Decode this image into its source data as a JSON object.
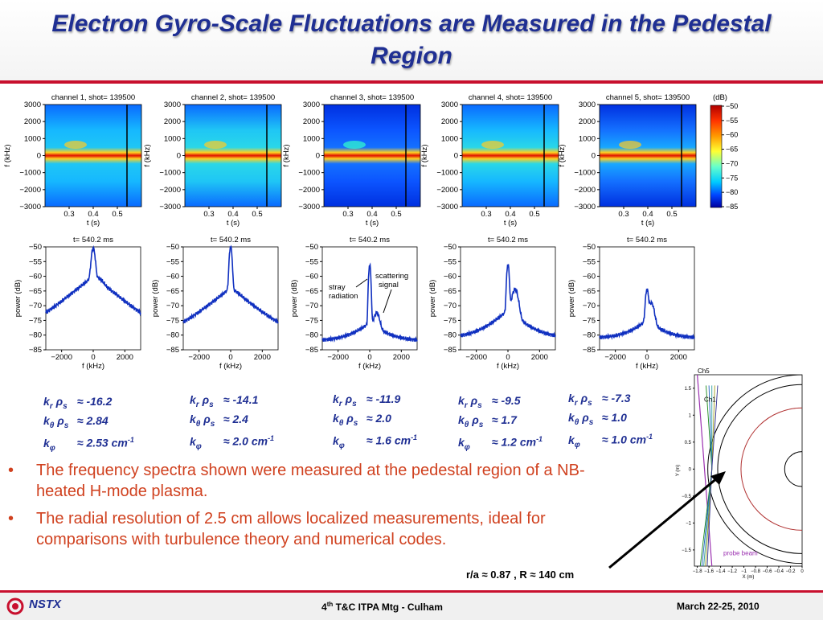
{
  "title": "Electron Gyro-Scale Fluctuations are Measured in the Pedestal Region",
  "colorbar": {
    "label": "(dB)",
    "ticks": [
      "−50",
      "−55",
      "−60",
      "−65",
      "−70",
      "−75",
      "−80",
      "−85"
    ],
    "colors": [
      "#b00000",
      "#ff3300",
      "#ff9900",
      "#ffff33",
      "#66ffcc",
      "#00ccff",
      "#0044ff",
      "#0000a0"
    ]
  },
  "chart_data": [
    {
      "type": "heatmap",
      "title": "channel 1, shot= 139500",
      "xlabel": "t (s)",
      "ylabel": "f (kHz)",
      "xticks": [
        "0.3",
        "0.4",
        "0.5"
      ],
      "yticks": [
        "3000",
        "2000",
        "1000",
        "0",
        "−1000",
        "−2000",
        "−3000"
      ],
      "ylim": [
        -3000,
        3000
      ]
    },
    {
      "type": "heatmap",
      "title": "channel 2, shot= 139500",
      "xlabel": "t (s)",
      "ylabel": "f (kHz)",
      "xticks": [
        "0.3",
        "0.4",
        "0.5"
      ],
      "yticks": [
        "3000",
        "2000",
        "1000",
        "0",
        "−1000",
        "−2000",
        "−3000"
      ],
      "ylim": [
        -3000,
        3000
      ]
    },
    {
      "type": "heatmap",
      "title": "channel 3, shot= 139500",
      "xlabel": "t (s)",
      "ylabel": "f (kHz)",
      "xticks": [
        "0.3",
        "0.4",
        "0.5"
      ],
      "yticks": [
        "3000",
        "2000",
        "1000",
        "0",
        "−1000",
        "−2000",
        "−3000"
      ],
      "ylim": [
        -3000,
        3000
      ]
    },
    {
      "type": "heatmap",
      "title": "channel 4, shot= 139500",
      "xlabel": "t (s)",
      "ylabel": "f (kHz)",
      "xticks": [
        "0.3",
        "0.4",
        "0.5"
      ],
      "yticks": [
        "3000",
        "2000",
        "1000",
        "0",
        "−1000",
        "−2000",
        "−3000"
      ],
      "ylim": [
        -3000,
        3000
      ]
    },
    {
      "type": "heatmap",
      "title": "channel 5, shot= 139500",
      "xlabel": "t (s)",
      "ylabel": "f (kHz)",
      "xticks": [
        "0.3",
        "0.4",
        "0.5"
      ],
      "yticks": [
        "3000",
        "2000",
        "1000",
        "0",
        "−1000",
        "−2000",
        "−3000"
      ],
      "ylim": [
        -3000,
        3000
      ]
    },
    {
      "type": "line",
      "title": "t= 540.2 ms",
      "xlabel": "f (kHz)",
      "ylabel": "power (dB)",
      "xticks": [
        "−2000",
        "0",
        "2000"
      ],
      "yticks": [
        "−50",
        "−55",
        "−60",
        "−65",
        "−70",
        "−75",
        "−80",
        "−85"
      ],
      "xlim": [
        -3000,
        3000
      ],
      "ylim": [
        -85,
        -50
      ],
      "baseline": -81,
      "peaks": [
        {
          "x": 0,
          "y": -51,
          "w": 130
        },
        {
          "x": 450,
          "y": -68,
          "w": 250
        }
      ],
      "wing": [
        -60,
        6000
      ]
    },
    {
      "type": "line",
      "title": "t= 540.2 ms",
      "xlabel": "f (kHz)",
      "ylabel": "power (dB)",
      "xticks": [
        "−2000",
        "0",
        "2000"
      ],
      "yticks": [
        "−50",
        "−55",
        "−60",
        "−65",
        "−70",
        "−75",
        "−80",
        "−85"
      ],
      "xlim": [
        -3000,
        3000
      ],
      "ylim": [
        -85,
        -50
      ],
      "baseline": -81,
      "peaks": [
        {
          "x": 0,
          "y": -50,
          "w": 90
        },
        {
          "x": 450,
          "y": -78,
          "w": 250
        }
      ],
      "wing": [
        -64,
        6000
      ]
    },
    {
      "type": "line",
      "title": "t= 540.2 ms",
      "xlabel": "f (kHz)",
      "ylabel": "power (dB)",
      "xticks": [
        "−2000",
        "0",
        "2000"
      ],
      "yticks": [
        "−50",
        "−55",
        "−60",
        "−65",
        "−70",
        "−75",
        "−80",
        "−85"
      ],
      "xlim": [
        -3000,
        3000
      ],
      "ylim": [
        -85,
        -50
      ],
      "baseline": -82,
      "peaks": [
        {
          "x": 0,
          "y": -56,
          "w": 70
        },
        {
          "x": 450,
          "y": -74,
          "w": 200
        }
      ],
      "wing": [
        -77,
        5000
      ],
      "annotations": [
        "stray radiation",
        "scattering signal"
      ]
    },
    {
      "type": "line",
      "title": "t= 540.2 ms",
      "xlabel": "f (kHz)",
      "ylabel": "power (dB)",
      "xticks": [
        "−2000",
        "0",
        "2000"
      ],
      "yticks": [
        "−50",
        "−55",
        "−60",
        "−65",
        "−70",
        "−75",
        "−80",
        "−85"
      ],
      "xlim": [
        -3000,
        3000
      ],
      "ylim": [
        -85,
        -50
      ],
      "baseline": -81,
      "peaks": [
        {
          "x": 0,
          "y": -56,
          "w": 80
        },
        {
          "x": 450,
          "y": -65,
          "w": 220
        }
      ],
      "wing": [
        -72,
        5000
      ]
    },
    {
      "type": "line",
      "title": "t= 540.2 ms",
      "xlabel": "f (kHz)",
      "ylabel": "power (dB)",
      "xticks": [
        "−2000",
        "0",
        "2000"
      ],
      "yticks": [
        "−50",
        "−55",
        "−60",
        "−65",
        "−70",
        "−75",
        "−80",
        "−85"
      ],
      "xlim": [
        -3000,
        3000
      ],
      "ylim": [
        -85,
        -50
      ],
      "baseline": -81,
      "peaks": [
        {
          "x": 0,
          "y": -65,
          "w": 100
        },
        {
          "x": 280,
          "y": -70,
          "w": 200
        }
      ],
      "wing": [
        -76,
        4500
      ]
    },
    {
      "type": "line",
      "title": "",
      "xlabel": "X (m)",
      "ylabel": "Y (m)",
      "xticks": [
        "−1.8",
        "−1.6",
        "−1.4",
        "−1.2",
        "−1",
        "−0.8",
        "−0.6",
        "−0.4",
        "−0.2",
        "0"
      ],
      "yticks": [
        "1.5",
        "1",
        "0.5",
        "0",
        "−0.5",
        "−1",
        "−1.5"
      ],
      "xlim": [
        -1.85,
        0
      ],
      "ylim": [
        -1.8,
        1.75
      ],
      "annotations": [
        "Ch5",
        "Ch1",
        "probe beam"
      ]
    }
  ],
  "k_values": [
    {
      "kr": "≈ -16.2",
      "kt": "≈ 2.84",
      "kp": "≈ 2.53 cm",
      "exp": "-1"
    },
    {
      "kr": "≈ -14.1",
      "kt": "≈ 2.4",
      "kp": "≈ 2.0 cm",
      "exp": "-1"
    },
    {
      "kr": "≈ -11.9",
      "kt": "≈ 2.0",
      "kp": "≈ 1.6 cm",
      "exp": "-1"
    },
    {
      "kr": "≈ -9.5",
      "kt": "≈ 1.7",
      "kp": "≈ 1.2 cm",
      "exp": "-1"
    },
    {
      "kr": "≈ -7.3",
      "kt": "≈ 1.0",
      "kp": "≈ 1.0 cm",
      "exp": "-1"
    }
  ],
  "k_labels": {
    "k": "k",
    "r": "r",
    "theta": "θ",
    "phi": "φ",
    "rho": "ρ",
    "s": "s"
  },
  "bullets": [
    "The frequency spectra shown were measured at the pedestal region of a NB-heated H-mode plasma.",
    "The radial resolution of 2.5 cm allows localized measurements, ideal for comparisons with turbulence theory and numerical codes."
  ],
  "bullet_symbol": "•",
  "location_caption": "r/a ≈ 0.87 , R ≈ 140 cm",
  "footer": {
    "logo": "NSTX",
    "meeting_pre": "4",
    "meeting_sup": "th",
    "meeting_post": " T&C ITPA Mtg - Culham",
    "date": "March 22-25, 2010"
  }
}
